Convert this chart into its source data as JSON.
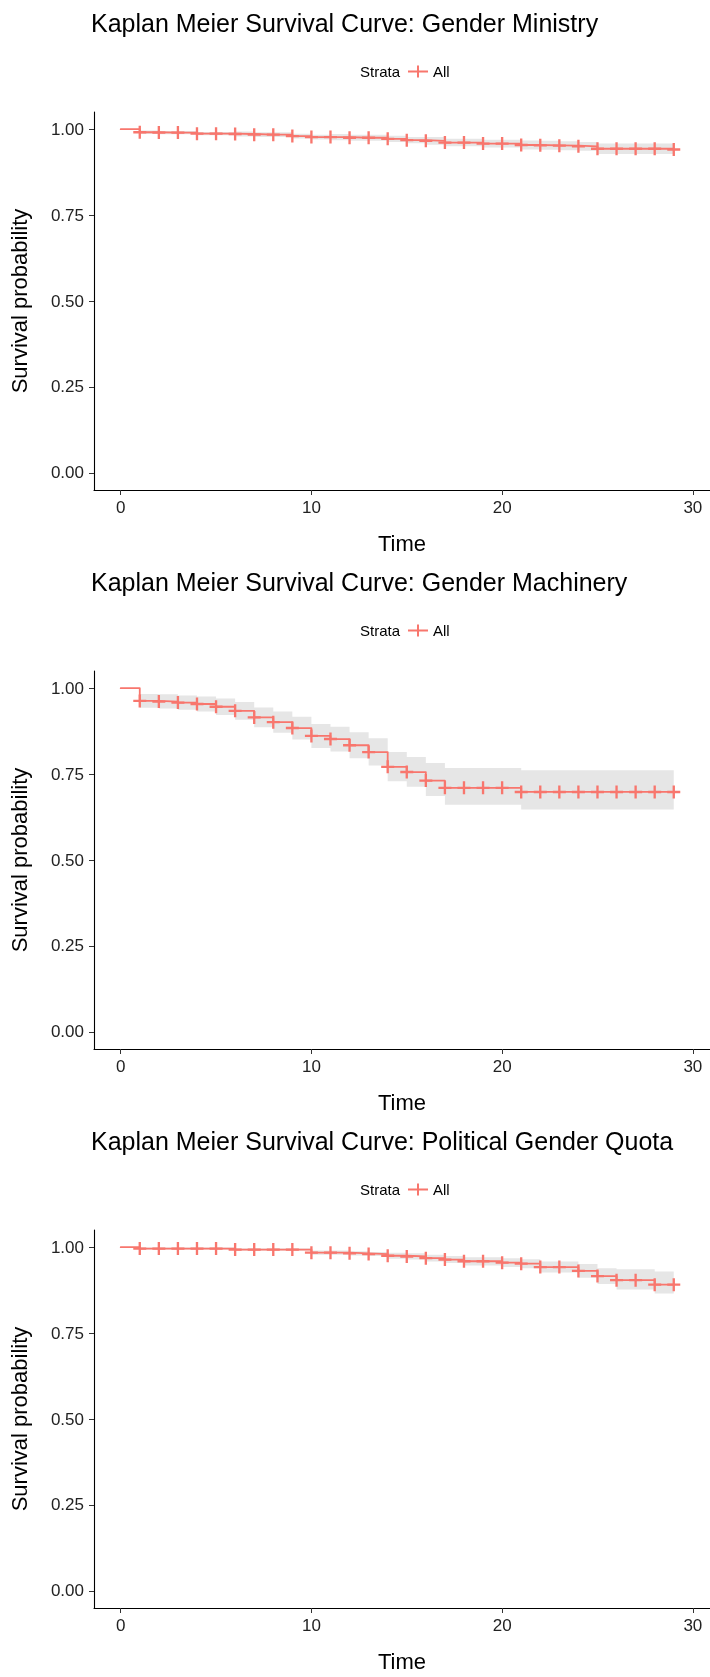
{
  "chart_data": [
    {
      "type": "step",
      "title": "Kaplan Meier Survival Curve: Gender Ministry",
      "xlabel": "Time",
      "ylabel": "Survival probability",
      "legend_title": "Strata",
      "legend": "top",
      "marker": "cross",
      "x": [
        0,
        1,
        2,
        3,
        4,
        5,
        6,
        7,
        8,
        9,
        10,
        11,
        12,
        13,
        14,
        15,
        16,
        17,
        18,
        19,
        20,
        21,
        22,
        23,
        24,
        25,
        26,
        27,
        28,
        29
      ],
      "xlim": [
        -1.4,
        30.9
      ],
      "xticks": [
        0,
        10,
        20,
        30
      ],
      "ylim": [
        -0.05,
        1.05
      ],
      "yticks": [
        {
          "value": 0,
          "label": "0.00"
        },
        {
          "value": 0.25,
          "label": "0.25"
        },
        {
          "value": 0.5,
          "label": "0.50"
        },
        {
          "value": 0.75,
          "label": "0.75"
        },
        {
          "value": 1,
          "label": "1.00"
        }
      ],
      "series": [
        {
          "name": "All",
          "color": "#f8766d",
          "values": [
            1,
            0.991,
            0.99,
            0.99,
            0.987,
            0.987,
            0.986,
            0.984,
            0.984,
            0.98,
            0.977,
            0.977,
            0.975,
            0.975,
            0.972,
            0.968,
            0.966,
            0.961,
            0.961,
            0.958,
            0.958,
            0.954,
            0.953,
            0.952,
            0.95,
            0.943,
            0.943,
            0.943,
            0.943,
            0.941
          ],
          "lower": [
            1,
            0.986,
            0.985,
            0.985,
            0.982,
            0.982,
            0.979,
            0.977,
            0.977,
            0.973,
            0.97,
            0.968,
            0.966,
            0.966,
            0.963,
            0.959,
            0.955,
            0.95,
            0.95,
            0.947,
            0.947,
            0.941,
            0.94,
            0.939,
            0.937,
            0.928,
            0.928,
            0.928,
            0.928,
            0.926
          ],
          "upper": [
            1,
            0.996,
            0.995,
            0.995,
            0.992,
            0.992,
            0.993,
            0.991,
            0.991,
            0.987,
            0.984,
            0.986,
            0.984,
            0.984,
            0.981,
            0.977,
            0.977,
            0.972,
            0.972,
            0.969,
            0.969,
            0.967,
            0.966,
            0.965,
            0.963,
            0.958,
            0.958,
            0.958,
            0.958,
            0.956
          ]
        }
      ]
    },
    {
      "type": "step",
      "title": "Kaplan Meier Survival Curve: Gender Machinery",
      "xlabel": "Time",
      "ylabel": "Survival probability",
      "legend_title": "Strata",
      "legend": "top",
      "marker": "cross",
      "x": [
        0,
        1,
        2,
        3,
        4,
        5,
        6,
        7,
        8,
        9,
        10,
        11,
        12,
        13,
        14,
        15,
        16,
        17,
        18,
        19,
        20,
        21,
        22,
        23,
        24,
        25,
        26,
        27,
        28,
        29
      ],
      "xlim": [
        -1.4,
        30.9
      ],
      "xticks": [
        0,
        10,
        20,
        30
      ],
      "ylim": [
        -0.05,
        1.05
      ],
      "yticks": [
        {
          "value": 0,
          "label": "0.00"
        },
        {
          "value": 0.25,
          "label": "0.25"
        },
        {
          "value": 0.5,
          "label": "0.50"
        },
        {
          "value": 0.75,
          "label": "0.75"
        },
        {
          "value": 1,
          "label": "1.00"
        }
      ],
      "series": [
        {
          "name": "All",
          "color": "#f8766d",
          "values": [
            1,
            0.963,
            0.961,
            0.958,
            0.954,
            0.946,
            0.934,
            0.915,
            0.901,
            0.884,
            0.861,
            0.852,
            0.834,
            0.814,
            0.771,
            0.756,
            0.731,
            0.71,
            0.71,
            0.71,
            0.71,
            0.698,
            0.698,
            0.698,
            0.698,
            0.698,
            0.698,
            0.698,
            0.698,
            0.698
          ],
          "lower": [
            1,
            0.943,
            0.941,
            0.937,
            0.932,
            0.922,
            0.908,
            0.886,
            0.87,
            0.851,
            0.826,
            0.816,
            0.796,
            0.775,
            0.729,
            0.713,
            0.686,
            0.661,
            0.661,
            0.661,
            0.661,
            0.647,
            0.647,
            0.647,
            0.647,
            0.647,
            0.647,
            0.647,
            0.647,
            0.647
          ],
          "upper": [
            1,
            0.983,
            0.982,
            0.979,
            0.976,
            0.97,
            0.96,
            0.944,
            0.932,
            0.917,
            0.896,
            0.888,
            0.872,
            0.854,
            0.814,
            0.8,
            0.782,
            0.768,
            0.768,
            0.768,
            0.768,
            0.761,
            0.761,
            0.761,
            0.761,
            0.761,
            0.761,
            0.761,
            0.761,
            0.761
          ]
        }
      ]
    },
    {
      "type": "step",
      "title": "Kaplan Meier Survival Curve: Political Gender Quota",
      "xlabel": "Time",
      "ylabel": "Survival probability",
      "legend_title": "Strata",
      "legend": "top",
      "marker": "cross",
      "x": [
        0,
        1,
        2,
        3,
        4,
        5,
        6,
        7,
        8,
        9,
        10,
        11,
        12,
        13,
        14,
        15,
        16,
        17,
        18,
        19,
        20,
        21,
        22,
        23,
        24,
        25,
        26,
        27,
        28,
        29
      ],
      "xlim": [
        -1.4,
        30.9
      ],
      "xticks": [
        0,
        10,
        20,
        30
      ],
      "ylim": [
        -0.05,
        1.05
      ],
      "yticks": [
        {
          "value": 0,
          "label": "0.00"
        },
        {
          "value": 0.25,
          "label": "0.25"
        },
        {
          "value": 0.5,
          "label": "0.50"
        },
        {
          "value": 0.75,
          "label": "0.75"
        },
        {
          "value": 1,
          "label": "1.00"
        }
      ],
      "series": [
        {
          "name": "All",
          "color": "#f8766d",
          "values": [
            1,
            0.996,
            0.996,
            0.996,
            0.996,
            0.996,
            0.993,
            0.993,
            0.993,
            0.993,
            0.984,
            0.984,
            0.982,
            0.98,
            0.975,
            0.973,
            0.968,
            0.964,
            0.959,
            0.959,
            0.955,
            0.952,
            0.942,
            0.942,
            0.931,
            0.916,
            0.904,
            0.904,
            0.891,
            0.891
          ],
          "lower": [
            1,
            0.993,
            0.993,
            0.993,
            0.993,
            0.993,
            0.99,
            0.99,
            0.99,
            0.99,
            0.978,
            0.978,
            0.976,
            0.974,
            0.966,
            0.964,
            0.958,
            0.954,
            0.947,
            0.947,
            0.942,
            0.939,
            0.926,
            0.926,
            0.911,
            0.893,
            0.877,
            0.877,
            0.865,
            0.865
          ],
          "upper": [
            1,
            0.999,
            0.999,
            0.999,
            0.999,
            0.999,
            0.996,
            0.996,
            0.996,
            0.996,
            0.99,
            0.99,
            0.988,
            0.986,
            0.984,
            0.982,
            0.978,
            0.974,
            0.971,
            0.971,
            0.968,
            0.965,
            0.958,
            0.958,
            0.951,
            0.939,
            0.936,
            0.936,
            0.929,
            0.929
          ]
        }
      ]
    }
  ]
}
